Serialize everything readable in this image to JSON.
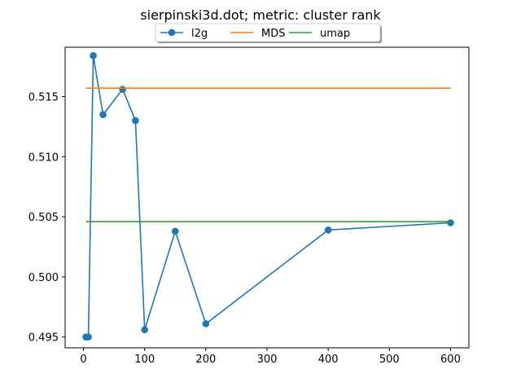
{
  "chart_data": {
    "type": "line",
    "title": "sierpinski3d.dot; metric: cluster rank",
    "xlabel": "",
    "ylabel": "",
    "xlim": [
      -30,
      630
    ],
    "ylim": [
      0.4941,
      0.5191
    ],
    "x_ticks": [
      0,
      100,
      200,
      300,
      400,
      500,
      600
    ],
    "y_ticks": [
      0.495,
      0.5,
      0.505,
      0.51,
      0.515
    ],
    "y_tick_labels": [
      "0.495",
      "0.500",
      "0.505",
      "0.510",
      "0.515"
    ],
    "grid": false,
    "legend": {
      "placement": "top-center",
      "columns": 3
    },
    "series": [
      {
        "name": "l2g",
        "color": "#1f77b4",
        "marker": "circle",
        "x": [
          4,
          8,
          16,
          32,
          64,
          85,
          100,
          150,
          200,
          400,
          600
        ],
        "y": [
          0.495,
          0.495,
          0.5184,
          0.5135,
          0.5156,
          0.513,
          0.4956,
          0.5038,
          0.4961,
          0.5039,
          0.5045
        ]
      },
      {
        "name": "MDS",
        "color": "#ff7f0e",
        "marker": "none",
        "x": [
          4,
          600
        ],
        "y": [
          0.5157,
          0.5157
        ]
      },
      {
        "name": "umap",
        "color": "#2ca02c",
        "marker": "none",
        "x": [
          4,
          600
        ],
        "y": [
          0.5046,
          0.5046
        ]
      }
    ]
  }
}
